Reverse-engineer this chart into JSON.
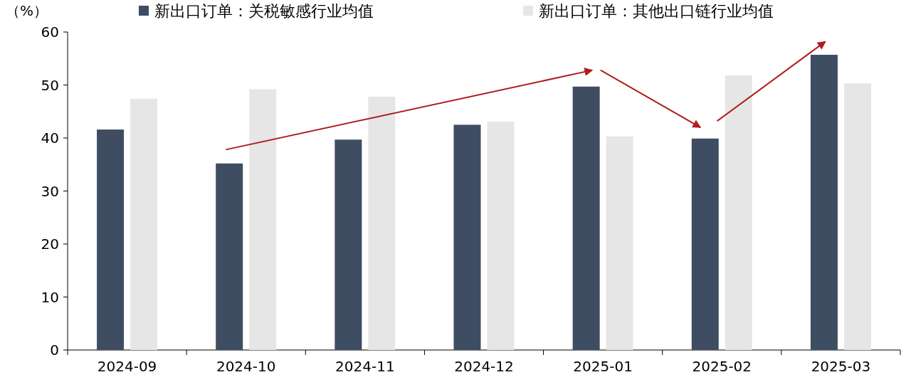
{
  "chart_data": {
    "type": "bar",
    "ylabel": "（%）",
    "categories": [
      "2024-09",
      "2024-10",
      "2024-11",
      "2024-12",
      "2025-01",
      "2025-02",
      "2025-03"
    ],
    "series": [
      {
        "name": "新出口订单：关税敏感行业均值",
        "color": "#3f4d63",
        "values": [
          41.6,
          35.2,
          39.7,
          42.5,
          49.7,
          39.9,
          55.7
        ]
      },
      {
        "name": "新出口订单：其他出口链行业均值",
        "color": "#e6e6e6",
        "values": [
          47.4,
          49.2,
          47.8,
          43.1,
          40.3,
          51.8,
          50.3
        ]
      }
    ],
    "ylim": [
      0,
      60
    ],
    "yticks": [
      0,
      10,
      20,
      30,
      40,
      50,
      60
    ],
    "legend": "top",
    "grid": false
  }
}
